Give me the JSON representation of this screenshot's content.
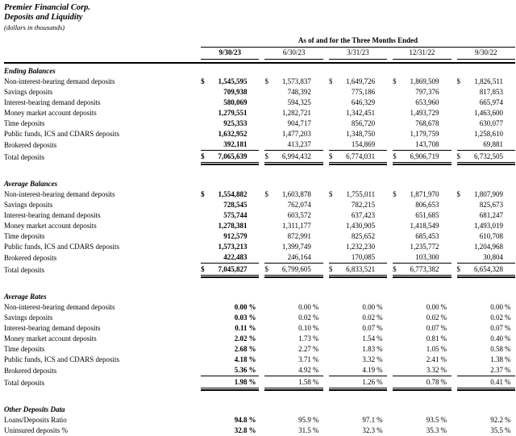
{
  "page": {
    "company": "Premier Financial Corp.",
    "report_title": "Deposits and Liquidity",
    "units_note": "(dollars in thousands)"
  },
  "colors": {
    "text": "#000000",
    "background": "#ffffff",
    "rule": "#000000"
  },
  "table": {
    "caption": "As of and for the Three Months Ended",
    "periods": [
      "9/30/23",
      "6/30/23",
      "3/31/23",
      "12/31/22",
      "9/30/22"
    ],
    "currency_symbol": "$",
    "percent_symbol": "%",
    "sections": [
      {
        "title": "Ending Balances",
        "value_type": "currency",
        "rows": [
          {
            "label": "Non-interest-bearing demand deposits",
            "dollar_sign": true,
            "values": [
              "1,545,595",
              "1,573,837",
              "1,649,726",
              "1,869,509",
              "1,826,511"
            ]
          },
          {
            "label": "Savings deposits",
            "dollar_sign": false,
            "values": [
              "709,938",
              "748,392",
              "775,186",
              "797,376",
              "817,853"
            ]
          },
          {
            "label": "Interest-bearing demand deposits",
            "dollar_sign": false,
            "values": [
              "580,069",
              "594,325",
              "646,329",
              "653,960",
              "665,974"
            ]
          },
          {
            "label": "Money market account deposits",
            "dollar_sign": false,
            "values": [
              "1,279,551",
              "1,282,721",
              "1,342,451",
              "1,493,729",
              "1,463,600"
            ]
          },
          {
            "label": "Time deposits",
            "dollar_sign": false,
            "values": [
              "925,353",
              "904,717",
              "856,720",
              "768,678",
              "630,077"
            ]
          },
          {
            "label": "Public funds, ICS and CDARS deposits",
            "dollar_sign": false,
            "values": [
              "1,632,952",
              "1,477,203",
              "1,348,750",
              "1,179,759",
              "1,258,610"
            ]
          },
          {
            "label": "Brokered deposits",
            "dollar_sign": false,
            "values": [
              "392,181",
              "413,237",
              "154,869",
              "143,708",
              "69,881"
            ]
          }
        ],
        "total": {
          "label": "Total deposits",
          "dollar_sign": true,
          "values": [
            "7,065,639",
            "6,994,432",
            "6,774,031",
            "6,906,719",
            "6,732,505"
          ]
        }
      },
      {
        "title": "Average Balances",
        "value_type": "currency",
        "rows": [
          {
            "label": "Non-interest-bearing demand deposits",
            "dollar_sign": true,
            "values": [
              "1,554,882",
              "1,603,878",
              "1,755,011",
              "1,871,970",
              "1,807,909"
            ]
          },
          {
            "label": "Savings deposits",
            "dollar_sign": false,
            "values": [
              "728,545",
              "762,074",
              "782,215",
              "806,653",
              "825,673"
            ]
          },
          {
            "label": "Interest-bearing demand deposits",
            "dollar_sign": false,
            "values": [
              "575,744",
              "603,572",
              "637,423",
              "651,685",
              "681,247"
            ]
          },
          {
            "label": "Money market account deposits",
            "dollar_sign": false,
            "values": [
              "1,278,381",
              "1,311,177",
              "1,430,905",
              "1,418,549",
              "1,493,019"
            ]
          },
          {
            "label": "Time deposits",
            "dollar_sign": false,
            "values": [
              "912,579",
              "872,991",
              "825,652",
              "685,453",
              "610,708"
            ]
          },
          {
            "label": "Public funds, ICS and CDARS deposits",
            "dollar_sign": false,
            "values": [
              "1,573,213",
              "1,399,749",
              "1,232,230",
              "1,235,772",
              "1,204,968"
            ]
          },
          {
            "label": "Brokered deposits",
            "dollar_sign": false,
            "values": [
              "422,483",
              "246,164",
              "170,085",
              "103,300",
              "30,804"
            ]
          }
        ],
        "total": {
          "label": "Total deposits",
          "dollar_sign": true,
          "values": [
            "7,045,827",
            "6,799,605",
            "6,833,521",
            "6,773,382",
            "6,654,328"
          ]
        }
      },
      {
        "title": "Average Rates",
        "value_type": "percent",
        "rows": [
          {
            "label": "Non-interest-bearing demand deposits",
            "dollar_sign": false,
            "values": [
              "0.00",
              "0.00",
              "0.00",
              "0.00",
              "0.00"
            ]
          },
          {
            "label": "Savings deposits",
            "dollar_sign": false,
            "values": [
              "0.03",
              "0.02",
              "0.02",
              "0.02",
              "0.02"
            ]
          },
          {
            "label": "Interest-bearing demand deposits",
            "dollar_sign": false,
            "values": [
              "0.11",
              "0.10",
              "0.07",
              "0.07",
              "0.07"
            ]
          },
          {
            "label": "Money market account deposits",
            "dollar_sign": false,
            "values": [
              "2.02",
              "1.73",
              "1.54",
              "0.81",
              "0.40"
            ]
          },
          {
            "label": "Time deposits",
            "dollar_sign": false,
            "values": [
              "2.68",
              "2.27",
              "1.83",
              "1.05",
              "0.58"
            ]
          },
          {
            "label": "Public funds, ICS and CDARS deposits",
            "dollar_sign": false,
            "values": [
              "4.18",
              "3.71",
              "3.32",
              "2.41",
              "1.38"
            ]
          },
          {
            "label": "Brokered deposits",
            "dollar_sign": false,
            "values": [
              "5.36",
              "4.92",
              "4.19",
              "3.32",
              "2.37"
            ]
          }
        ],
        "total": {
          "label": "Total deposits",
          "dollar_sign": false,
          "values": [
            "1.98",
            "1.58",
            "1.26",
            "0.78",
            "0.41"
          ]
        }
      },
      {
        "title": "Other Deposits Data",
        "value_type": "percent",
        "rows": [
          {
            "label": "Loans/Deposits Ratio",
            "dollar_sign": false,
            "values": [
              "94.8",
              "95.9",
              "97.1",
              "93.5",
              "92.2"
            ]
          },
          {
            "label": "Uninsured deposits %",
            "dollar_sign": false,
            "values": [
              "32.8",
              "31.5",
              "32.3",
              "35.3",
              "35.5"
            ]
          }
        ]
      }
    ]
  }
}
